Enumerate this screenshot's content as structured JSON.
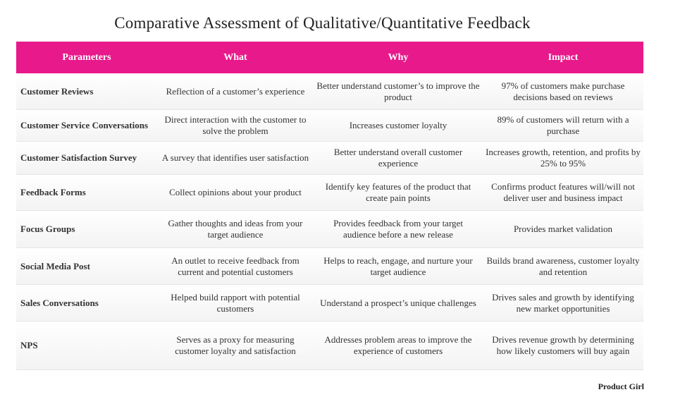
{
  "title": "Comparative Assessment of Qualitative/Quantitative Feedback",
  "header": {
    "parameters": "Parameters",
    "what": "What",
    "why": "Why",
    "impact": "Impact"
  },
  "rows": [
    {
      "parameter": "Customer Reviews",
      "what": "Reflection of a customer’s experience",
      "why": "Better understand customer’s to improve the product",
      "impact": "97% of customers make purchase decisions based on reviews"
    },
    {
      "parameter": "Customer Service Conversations",
      "what": "Direct interaction with the customer to solve the problem",
      "why": "Increases customer loyalty",
      "impact": "89% of customers will return with a purchase"
    },
    {
      "parameter": "Customer Satisfaction Survey",
      "what": "A survey that identifies user satisfaction",
      "why": "Better understand overall customer experience",
      "impact": "Increases growth, retention, and profits by 25% to 95%"
    },
    {
      "parameter": "Feedback Forms",
      "what": "Collect opinions about your product",
      "why": "Identify key features of the product that create pain points",
      "impact": "Confirms product features will/will not deliver user and business impact"
    },
    {
      "parameter": "Focus Groups",
      "what": "Gather thoughts and ideas from your target audience",
      "why": "Provides feedback from your target audience before a new release",
      "impact": "Provides market validation"
    },
    {
      "parameter": "Social Media Post",
      "what": "An outlet to receive feedback from current and potential customers",
      "why": "Helps to reach, engage, and nurture your target audience",
      "impact": "Builds brand awareness, customer loyalty and retention"
    },
    {
      "parameter": "Sales Conversations",
      "what": "Helped build rapport with potential customers",
      "why": "Understand a prospect’s unique challenges",
      "impact": "Drives sales and growth by identifying new market opportunities"
    },
    {
      "parameter": "NPS",
      "what": "Serves as a proxy for measuring customer loyalty and satisfaction",
      "why": "Addresses problem areas to improve the experience of customers",
      "impact": "Drives revenue growth by determining how likely customers will buy again"
    }
  ],
  "footer": "Product Girl"
}
